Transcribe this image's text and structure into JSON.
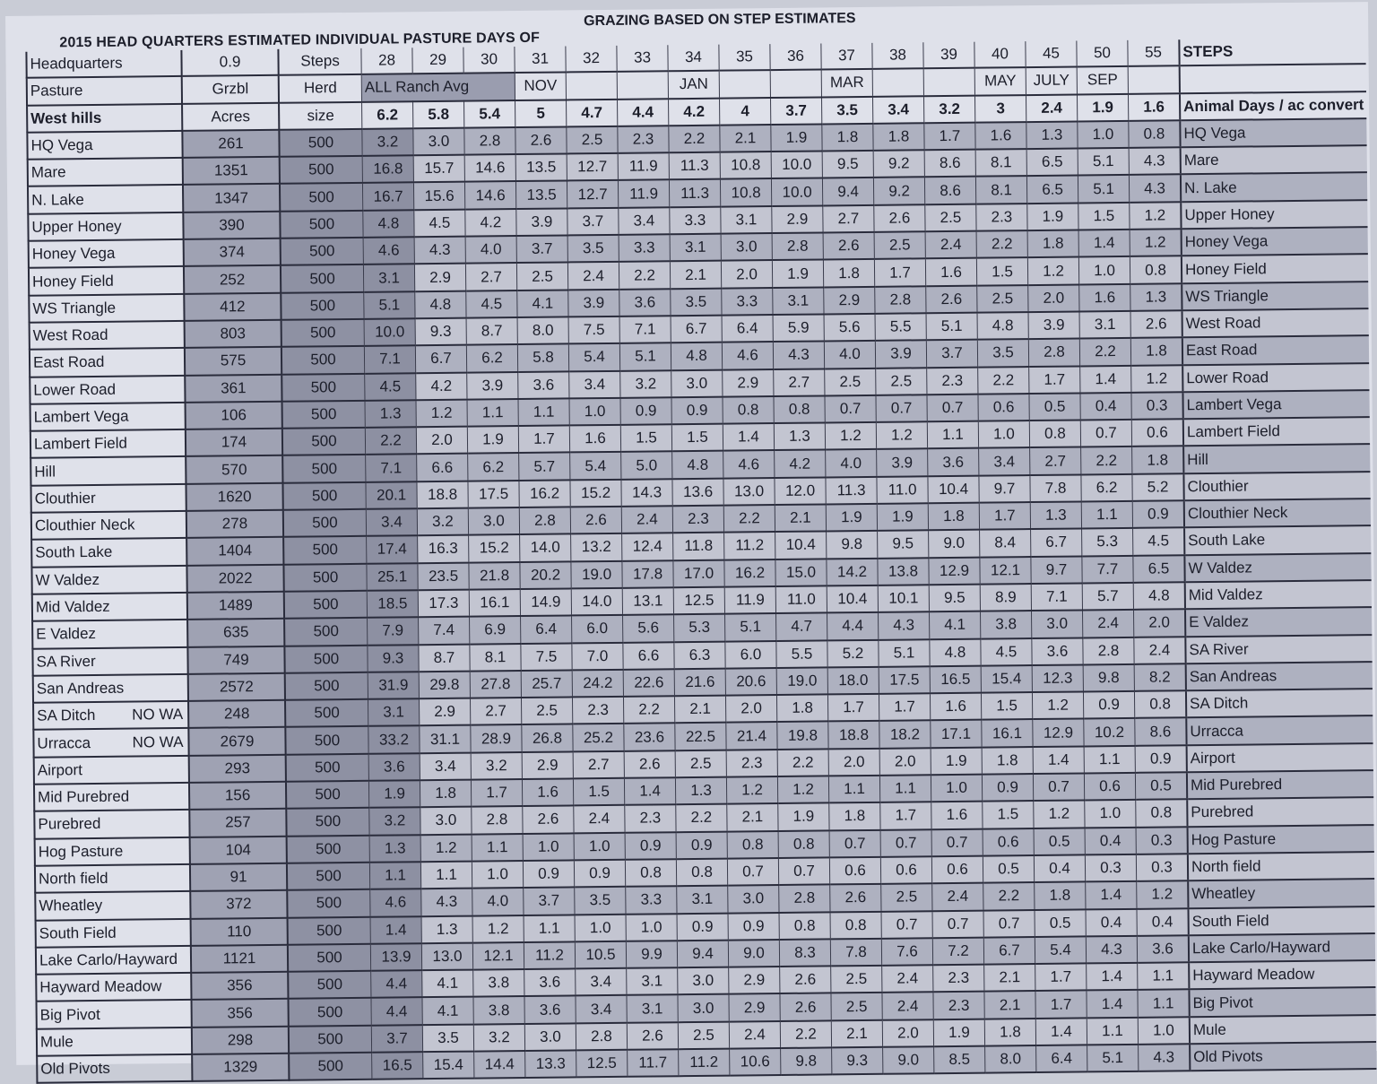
{
  "title_left": "2015 HEAD QUARTERS ESTIMATED INDIVIDUAL PASTURE DAYS OF",
  "title_right": "GRAZING BASED ON STEP ESTIMATES",
  "header": {
    "row1": {
      "label": "Headquarters",
      "acres": "0.9",
      "herd": "Steps",
      "right": "STEPS",
      "values": [
        "28",
        "29",
        "30",
        "31",
        "32",
        "33",
        "34",
        "35",
        "36",
        "37",
        "38",
        "39",
        "40",
        "45",
        "50",
        "55"
      ]
    },
    "row2": {
      "label": "Pasture",
      "acres": "Grzbl",
      "herd": "Herd",
      "ranch_avg": "ALL Ranch Avg",
      "values": [
        "",
        "",
        "",
        "NOV",
        "",
        "",
        "JAN",
        "",
        "",
        "MAR",
        "",
        "",
        "MAY",
        "JULY",
        "SEP",
        ""
      ]
    },
    "row3": {
      "label": "West hills",
      "acres": "Acres",
      "herd": "size",
      "right": "Animal Days / ac convert",
      "values": [
        "6.2",
        "5.8",
        "5.4",
        "5",
        "4.7",
        "4.4",
        "4.2",
        "4",
        "3.7",
        "3.5",
        "3.4",
        "3.2",
        "3",
        "2.4",
        "1.9",
        "1.6"
      ]
    }
  },
  "rows": [
    {
      "name": "HQ Vega",
      "acres": "261",
      "herd": "500",
      "values": [
        "3.2",
        "3.0",
        "2.8",
        "2.6",
        "2.5",
        "2.3",
        "2.2",
        "2.1",
        "1.9",
        "1.8",
        "1.8",
        "1.7",
        "1.6",
        "1.3",
        "1.0",
        "0.8"
      ]
    },
    {
      "name": "Mare",
      "acres": "1351",
      "herd": "500",
      "values": [
        "16.8",
        "15.7",
        "14.6",
        "13.5",
        "12.7",
        "11.9",
        "11.3",
        "10.8",
        "10.0",
        "9.5",
        "9.2",
        "8.6",
        "8.1",
        "6.5",
        "5.1",
        "4.3"
      ]
    },
    {
      "name": "N. Lake",
      "acres": "1347",
      "herd": "500",
      "values": [
        "16.7",
        "15.6",
        "14.6",
        "13.5",
        "12.7",
        "11.9",
        "11.3",
        "10.8",
        "10.0",
        "9.4",
        "9.2",
        "8.6",
        "8.1",
        "6.5",
        "5.1",
        "4.3"
      ]
    },
    {
      "name": "Upper Honey",
      "acres": "390",
      "herd": "500",
      "values": [
        "4.8",
        "4.5",
        "4.2",
        "3.9",
        "3.7",
        "3.4",
        "3.3",
        "3.1",
        "2.9",
        "2.7",
        "2.6",
        "2.5",
        "2.3",
        "1.9",
        "1.5",
        "1.2"
      ]
    },
    {
      "name": "Honey Vega",
      "acres": "374",
      "herd": "500",
      "values": [
        "4.6",
        "4.3",
        "4.0",
        "3.7",
        "3.5",
        "3.3",
        "3.1",
        "3.0",
        "2.8",
        "2.6",
        "2.5",
        "2.4",
        "2.2",
        "1.8",
        "1.4",
        "1.2"
      ]
    },
    {
      "name": "Honey Field",
      "acres": "252",
      "herd": "500",
      "values": [
        "3.1",
        "2.9",
        "2.7",
        "2.5",
        "2.4",
        "2.2",
        "2.1",
        "2.0",
        "1.9",
        "1.8",
        "1.7",
        "1.6",
        "1.5",
        "1.2",
        "1.0",
        "0.8"
      ]
    },
    {
      "name": "WS Triangle",
      "acres": "412",
      "herd": "500",
      "values": [
        "5.1",
        "4.8",
        "4.5",
        "4.1",
        "3.9",
        "3.6",
        "3.5",
        "3.3",
        "3.1",
        "2.9",
        "2.8",
        "2.6",
        "2.5",
        "2.0",
        "1.6",
        "1.3"
      ]
    },
    {
      "name": "West Road",
      "acres": "803",
      "herd": "500",
      "values": [
        "10.0",
        "9.3",
        "8.7",
        "8.0",
        "7.5",
        "7.1",
        "6.7",
        "6.4",
        "5.9",
        "5.6",
        "5.5",
        "5.1",
        "4.8",
        "3.9",
        "3.1",
        "2.6"
      ]
    },
    {
      "name": "East Road",
      "acres": "575",
      "herd": "500",
      "values": [
        "7.1",
        "6.7",
        "6.2",
        "5.8",
        "5.4",
        "5.1",
        "4.8",
        "4.6",
        "4.3",
        "4.0",
        "3.9",
        "3.7",
        "3.5",
        "2.8",
        "2.2",
        "1.8"
      ]
    },
    {
      "name": "Lower Road",
      "acres": "361",
      "herd": "500",
      "values": [
        "4.5",
        "4.2",
        "3.9",
        "3.6",
        "3.4",
        "3.2",
        "3.0",
        "2.9",
        "2.7",
        "2.5",
        "2.5",
        "2.3",
        "2.2",
        "1.7",
        "1.4",
        "1.2"
      ]
    },
    {
      "name": "Lambert Vega",
      "acres": "106",
      "herd": "500",
      "values": [
        "1.3",
        "1.2",
        "1.1",
        "1.1",
        "1.0",
        "0.9",
        "0.9",
        "0.8",
        "0.8",
        "0.7",
        "0.7",
        "0.7",
        "0.6",
        "0.5",
        "0.4",
        "0.3"
      ]
    },
    {
      "name": "Lambert Field",
      "acres": "174",
      "herd": "500",
      "values": [
        "2.2",
        "2.0",
        "1.9",
        "1.7",
        "1.6",
        "1.5",
        "1.5",
        "1.4",
        "1.3",
        "1.2",
        "1.2",
        "1.1",
        "1.0",
        "0.8",
        "0.7",
        "0.6"
      ]
    },
    {
      "name": "Hill",
      "acres": "570",
      "herd": "500",
      "values": [
        "7.1",
        "6.6",
        "6.2",
        "5.7",
        "5.4",
        "5.0",
        "4.8",
        "4.6",
        "4.2",
        "4.0",
        "3.9",
        "3.6",
        "3.4",
        "2.7",
        "2.2",
        "1.8"
      ]
    },
    {
      "name": "Clouthier",
      "acres": "1620",
      "herd": "500",
      "values": [
        "20.1",
        "18.8",
        "17.5",
        "16.2",
        "15.2",
        "14.3",
        "13.6",
        "13.0",
        "12.0",
        "11.3",
        "11.0",
        "10.4",
        "9.7",
        "7.8",
        "6.2",
        "5.2"
      ]
    },
    {
      "name": "Clouthier Neck",
      "acres": "278",
      "herd": "500",
      "values": [
        "3.4",
        "3.2",
        "3.0",
        "2.8",
        "2.6",
        "2.4",
        "2.3",
        "2.2",
        "2.1",
        "1.9",
        "1.9",
        "1.8",
        "1.7",
        "1.3",
        "1.1",
        "0.9"
      ]
    },
    {
      "name": "South Lake",
      "acres": "1404",
      "herd": "500",
      "values": [
        "17.4",
        "16.3",
        "15.2",
        "14.0",
        "13.2",
        "12.4",
        "11.8",
        "11.2",
        "10.4",
        "9.8",
        "9.5",
        "9.0",
        "8.4",
        "6.7",
        "5.3",
        "4.5"
      ]
    },
    {
      "name": "W Valdez",
      "acres": "2022",
      "herd": "500",
      "values": [
        "25.1",
        "23.5",
        "21.8",
        "20.2",
        "19.0",
        "17.8",
        "17.0",
        "16.2",
        "15.0",
        "14.2",
        "13.8",
        "12.9",
        "12.1",
        "9.7",
        "7.7",
        "6.5"
      ]
    },
    {
      "name": "Mid Valdez",
      "acres": "1489",
      "herd": "500",
      "values": [
        "18.5",
        "17.3",
        "16.1",
        "14.9",
        "14.0",
        "13.1",
        "12.5",
        "11.9",
        "11.0",
        "10.4",
        "10.1",
        "9.5",
        "8.9",
        "7.1",
        "5.7",
        "4.8"
      ]
    },
    {
      "name": "E Valdez",
      "acres": "635",
      "herd": "500",
      "values": [
        "7.9",
        "7.4",
        "6.9",
        "6.4",
        "6.0",
        "5.6",
        "5.3",
        "5.1",
        "4.7",
        "4.4",
        "4.3",
        "4.1",
        "3.8",
        "3.0",
        "2.4",
        "2.0"
      ]
    },
    {
      "name": "SA River",
      "acres": "749",
      "herd": "500",
      "values": [
        "9.3",
        "8.7",
        "8.1",
        "7.5",
        "7.0",
        "6.6",
        "6.3",
        "6.0",
        "5.5",
        "5.2",
        "5.1",
        "4.8",
        "4.5",
        "3.6",
        "2.8",
        "2.4"
      ]
    },
    {
      "name": "San Andreas",
      "acres": "2572",
      "herd": "500",
      "values": [
        "31.9",
        "29.8",
        "27.8",
        "25.7",
        "24.2",
        "22.6",
        "21.6",
        "20.6",
        "19.0",
        "18.0",
        "17.5",
        "16.5",
        "15.4",
        "12.3",
        "9.8",
        "8.2"
      ]
    },
    {
      "name": "SA Ditch",
      "note": "NO WA",
      "acres": "248",
      "herd": "500",
      "values": [
        "3.1",
        "2.9",
        "2.7",
        "2.5",
        "2.3",
        "2.2",
        "2.1",
        "2.0",
        "1.8",
        "1.7",
        "1.7",
        "1.6",
        "1.5",
        "1.2",
        "0.9",
        "0.8"
      ]
    },
    {
      "name": "Urracca",
      "note": "NO WA",
      "acres": "2679",
      "herd": "500",
      "values": [
        "33.2",
        "31.1",
        "28.9",
        "26.8",
        "25.2",
        "23.6",
        "22.5",
        "21.4",
        "19.8",
        "18.8",
        "18.2",
        "17.1",
        "16.1",
        "12.9",
        "10.2",
        "8.6"
      ]
    },
    {
      "name": "Airport",
      "acres": "293",
      "herd": "500",
      "values": [
        "3.6",
        "3.4",
        "3.2",
        "2.9",
        "2.7",
        "2.6",
        "2.5",
        "2.3",
        "2.2",
        "2.0",
        "2.0",
        "1.9",
        "1.8",
        "1.4",
        "1.1",
        "0.9"
      ]
    },
    {
      "name": "Mid Purebred",
      "acres": "156",
      "herd": "500",
      "values": [
        "1.9",
        "1.8",
        "1.7",
        "1.6",
        "1.5",
        "1.4",
        "1.3",
        "1.2",
        "1.2",
        "1.1",
        "1.1",
        "1.0",
        "0.9",
        "0.7",
        "0.6",
        "0.5"
      ]
    },
    {
      "name": "Purebred",
      "acres": "257",
      "herd": "500",
      "values": [
        "3.2",
        "3.0",
        "2.8",
        "2.6",
        "2.4",
        "2.3",
        "2.2",
        "2.1",
        "1.9",
        "1.8",
        "1.7",
        "1.6",
        "1.5",
        "1.2",
        "1.0",
        "0.8"
      ]
    },
    {
      "name": "Hog Pasture",
      "acres": "104",
      "herd": "500",
      "values": [
        "1.3",
        "1.2",
        "1.1",
        "1.0",
        "1.0",
        "0.9",
        "0.9",
        "0.8",
        "0.8",
        "0.7",
        "0.7",
        "0.7",
        "0.6",
        "0.5",
        "0.4",
        "0.3"
      ]
    },
    {
      "name": "North field",
      "acres": "91",
      "herd": "500",
      "values": [
        "1.1",
        "1.1",
        "1.0",
        "0.9",
        "0.9",
        "0.8",
        "0.8",
        "0.7",
        "0.7",
        "0.6",
        "0.6",
        "0.6",
        "0.5",
        "0.4",
        "0.3",
        "0.3"
      ]
    },
    {
      "name": "Wheatley",
      "acres": "372",
      "herd": "500",
      "values": [
        "4.6",
        "4.3",
        "4.0",
        "3.7",
        "3.5",
        "3.3",
        "3.1",
        "3.0",
        "2.8",
        "2.6",
        "2.5",
        "2.4",
        "2.2",
        "1.8",
        "1.4",
        "1.2"
      ]
    },
    {
      "name": "South Field",
      "acres": "110",
      "herd": "500",
      "values": [
        "1.4",
        "1.3",
        "1.2",
        "1.1",
        "1.0",
        "1.0",
        "0.9",
        "0.9",
        "0.8",
        "0.8",
        "0.7",
        "0.7",
        "0.7",
        "0.5",
        "0.4",
        "0.4"
      ]
    },
    {
      "name": "Lake Carlo/Hayward",
      "acres": "1121",
      "herd": "500",
      "values": [
        "13.9",
        "13.0",
        "12.1",
        "11.2",
        "10.5",
        "9.9",
        "9.4",
        "9.0",
        "8.3",
        "7.8",
        "7.6",
        "7.2",
        "6.7",
        "5.4",
        "4.3",
        "3.6"
      ]
    },
    {
      "name": "Hayward Meadow",
      "acres": "356",
      "herd": "500",
      "values": [
        "4.4",
        "4.1",
        "3.8",
        "3.6",
        "3.4",
        "3.1",
        "3.0",
        "2.9",
        "2.6",
        "2.5",
        "2.4",
        "2.3",
        "2.1",
        "1.7",
        "1.4",
        "1.1"
      ]
    },
    {
      "name": "Big Pivot",
      "acres": "356",
      "herd": "500",
      "values": [
        "4.4",
        "4.1",
        "3.8",
        "3.6",
        "3.4",
        "3.1",
        "3.0",
        "2.9",
        "2.6",
        "2.5",
        "2.4",
        "2.3",
        "2.1",
        "1.7",
        "1.4",
        "1.1"
      ]
    },
    {
      "name": "Mule",
      "acres": "298",
      "herd": "500",
      "values": [
        "3.7",
        "3.5",
        "3.2",
        "3.0",
        "2.8",
        "2.6",
        "2.5",
        "2.4",
        "2.2",
        "2.1",
        "2.0",
        "1.9",
        "1.8",
        "1.4",
        "1.1",
        "1.0"
      ]
    },
    {
      "name": "Old Pivots",
      "acres": "1329",
      "herd": "500",
      "values": [
        "16.5",
        "15.4",
        "14.4",
        "13.3",
        "12.5",
        "11.7",
        "11.2",
        "10.6",
        "9.8",
        "9.3",
        "9.0",
        "8.5",
        "8.0",
        "6.4",
        "5.1",
        "4.3"
      ]
    }
  ]
}
